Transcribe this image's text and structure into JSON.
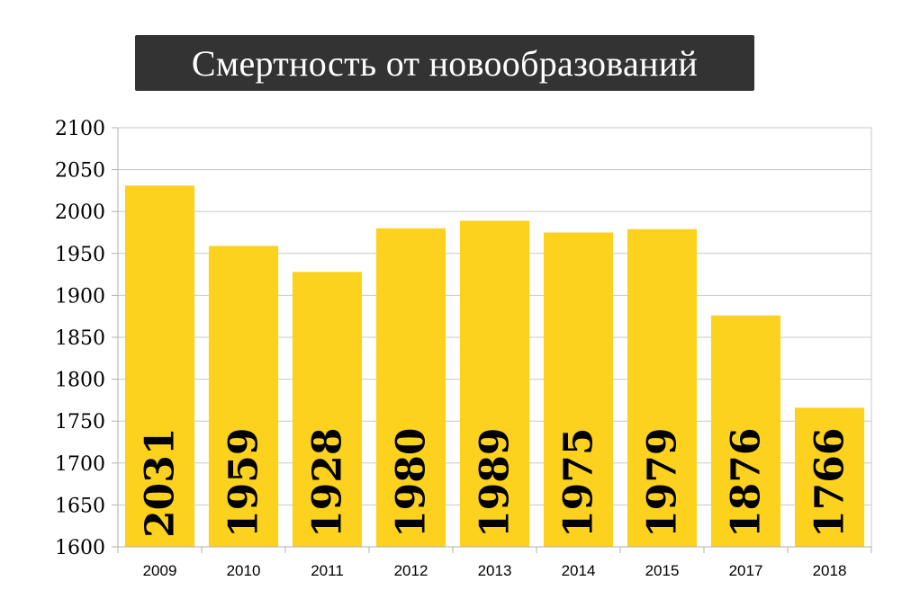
{
  "title": "Смертность от новообразований",
  "colors": {
    "bar": "#FCD21F",
    "title_background": "#333333",
    "title_text": "#FFFFFF",
    "grid": "#C8C8C8"
  },
  "chart_data": {
    "type": "bar",
    "title": "Смертность от новообразований",
    "xlabel": "",
    "ylabel": "",
    "categories": [
      "2009",
      "2010",
      "2011",
      "2012",
      "2013",
      "2014",
      "2015",
      "2017",
      "2018"
    ],
    "values": [
      2031,
      1959,
      1928,
      1980,
      1989,
      1975,
      1979,
      1876,
      1766
    ],
    "ylim": [
      1600,
      2100
    ],
    "yticks": [
      "1600",
      "1650",
      "1700",
      "1750",
      "1800",
      "1850",
      "1900",
      "1950",
      "2000",
      "2050",
      "2100"
    ],
    "grid": true,
    "legend": false,
    "data_labels": "vertical, inside bar bottom"
  }
}
